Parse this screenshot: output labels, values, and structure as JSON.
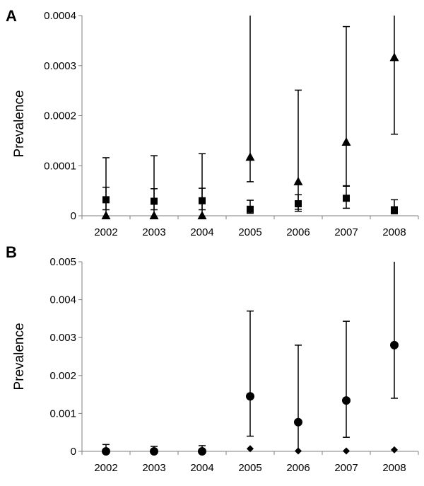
{
  "chart_data": [
    {
      "panel_label": "A",
      "type": "scatter",
      "ylabel": "Prevalence",
      "xlabel": "",
      "categories": [
        "2002",
        "2003",
        "2004",
        "2005",
        "2006",
        "2007",
        "2008"
      ],
      "ylim": [
        0,
        0.0004
      ],
      "y_ticks": [
        "0",
        "0.0001",
        "0.0002",
        "0.0003",
        "0.0004"
      ],
      "grid": false,
      "series": [
        {
          "marker": "square",
          "values": [
            3.2e-05,
            2.9e-05,
            3e-05,
            1.3e-05,
            2.4e-05,
            3.5e-05,
            1.2e-05
          ],
          "lower": [
            1.2e-05,
            1.2e-05,
            1.2e-05,
            5e-06,
            9e-06,
            1.5e-05,
            4e-06
          ],
          "upper": [
            5.7e-05,
            5.4e-05,
            5.5e-05,
            3.1e-05,
            4.2e-05,
            6e-05,
            3.2e-05
          ]
        },
        {
          "marker": "triangle",
          "values": [
            0,
            0,
            0,
            0.000117,
            6.8e-05,
            0.000147,
            0.000316
          ],
          "lower": [
            0,
            0,
            0,
            6.8e-05,
            1.3e-05,
            5.9e-05,
            0.000163
          ],
          "upper": [
            0.000116,
            0.00012,
            0.000124,
            0.0004,
            0.000251,
            0.000378,
            0.0004
          ]
        }
      ]
    },
    {
      "panel_label": "B",
      "type": "scatter",
      "ylabel": "Prevalence",
      "xlabel": "",
      "categories": [
        "2002",
        "2003",
        "2004",
        "2005",
        "2006",
        "2007",
        "2008"
      ],
      "ylim": [
        0,
        0.005
      ],
      "y_ticks": [
        "0",
        "0.001",
        "0.002",
        "0.003",
        "0.004",
        "0.005"
      ],
      "grid": false,
      "series": [
        {
          "marker": "circle",
          "values": [
            0,
            0,
            0,
            0.00145,
            0.00077,
            0.00134,
            0.0028
          ],
          "lower": [
            0,
            0,
            0,
            0.0004,
            0,
            0.00037,
            0.0014
          ],
          "upper": [
            0.00018,
            0.00013,
            0.00015,
            0.0037,
            0.0028,
            0.00343,
            0.005
          ]
        },
        {
          "marker": "diamond",
          "values": [
            null,
            null,
            null,
            7e-05,
            1e-05,
            1e-05,
            4e-05
          ],
          "lower": [
            null,
            null,
            null,
            null,
            null,
            null,
            null
          ],
          "upper": [
            null,
            null,
            null,
            null,
            null,
            null,
            null
          ]
        }
      ]
    }
  ]
}
